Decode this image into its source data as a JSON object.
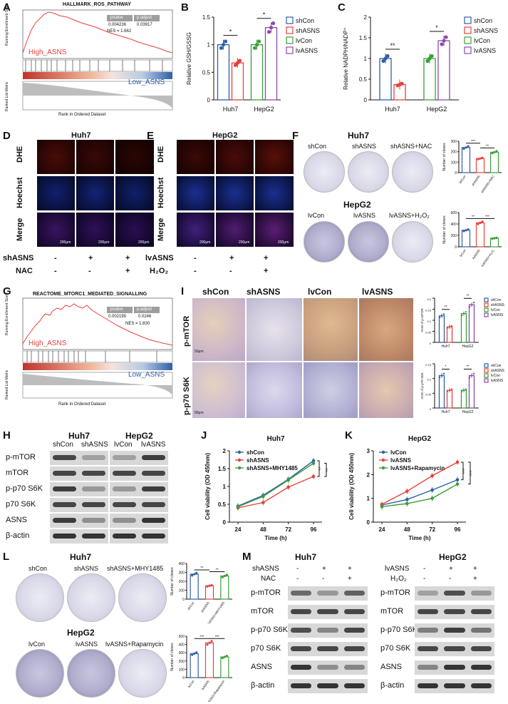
{
  "panels": {
    "A": {
      "letter": "A",
      "title": "HALLMARK_ROS_PATHWAY",
      "ylabel": "Running Enrichment Score",
      "ylabel2": "Ranked List Metric",
      "xlabel": "Rank in Ordered Dataset",
      "high": "High_ASNS",
      "low": "Low_ASNS",
      "pvalue_h": "pvalue",
      "padj_h": "p.adjust",
      "pvalue": "0.004236",
      "padj": "0.03917",
      "nes": "NES = 1.662"
    },
    "B": {
      "letter": "B",
      "ylabel": "Relative GSH/GSSG",
      "groups": [
        "Huh7",
        "HepG2"
      ],
      "sig": [
        "*",
        "*"
      ]
    },
    "C": {
      "letter": "C",
      "ylabel": "Relative NADPH/NADP⁺",
      "groups": [
        "Huh7",
        "HepG2"
      ],
      "sig": [
        "**",
        "*"
      ]
    },
    "D": {
      "letter": "D",
      "title": "Huh7",
      "rows": [
        "DHE",
        "Hoechst",
        "Merge"
      ],
      "scale": "200μm",
      "treat1": "shASNS",
      "treat2": "NAC",
      "signs1": [
        "-",
        "+",
        "+"
      ],
      "signs2": [
        "-",
        "-",
        "+"
      ]
    },
    "E": {
      "letter": "E",
      "title": "HepG2",
      "rows": [
        "DHE",
        "Hoechst",
        "Merge"
      ],
      "scale": "200μm",
      "treat1": "lvASNS",
      "treat2": "H₂O₂",
      "signs1": [
        "-",
        "+",
        "+"
      ],
      "signs2": [
        "-",
        "-",
        "+"
      ]
    },
    "F": {
      "letter": "F",
      "title1": "Huh7",
      "labels1": [
        "shCon",
        "shASNS",
        "shASNS+NAC"
      ],
      "title2": "HepG2",
      "labels2": [
        "lvCon",
        "lvASNS",
        "lvASNS+H₂O₂"
      ],
      "ylabel": "Number of clones",
      "sig1": [
        "***",
        "**"
      ],
      "sig2": [
        "**",
        "***"
      ]
    },
    "G": {
      "letter": "G",
      "title": "REACTOME_MTORC1_MEDIATED_SIGNALLING",
      "ylabel": "Running Enrichment Score",
      "ylabel2": "Ranked List Metric",
      "xlabel": "Rank in Ordered Dataset",
      "high": "High_ASNS",
      "low": "Low_ASNS",
      "pvalue_h": "pvalue",
      "padj_h": "p.adjust",
      "pvalue": "0.002195",
      "padj": "0.0246",
      "nes": "NES = 1.830"
    },
    "I": {
      "letter": "I",
      "cols": [
        "shCon",
        "shASNS",
        "lvCon",
        "lvASNS"
      ],
      "rows": [
        "p-mTOR",
        "p-p70 S6K"
      ],
      "scale": "50μm",
      "ylabel1": "AOD of p-mTOR",
      "ylabel2": "AOD of p-p70 S6K",
      "groups": [
        "Huh7",
        "HepG2"
      ]
    },
    "H": {
      "letter": "H",
      "title1": "Huh7",
      "title2": "HepG2",
      "lanes1": [
        "shCon",
        "shASNS"
      ],
      "lanes2": [
        "lvCon",
        "lvASNS"
      ],
      "rows": [
        "p-mTOR",
        "mTOR",
        "p-p70 S6K",
        "p70 S6K",
        "ASNS",
        "β-actin"
      ]
    },
    "J": {
      "letter": "J",
      "title": "Huh7",
      "xlabel": "Time (h)",
      "ylabel": "Cell viability (OD 450nm)",
      "sig": [
        "**",
        "**"
      ]
    },
    "K": {
      "letter": "K",
      "title": "HepG2",
      "xlabel": "Time (h)",
      "ylabel": "Cell viability (OD 450nm)",
      "sig": [
        "***",
        "***"
      ]
    },
    "L": {
      "letter": "L",
      "title1": "Huh7",
      "labels1": [
        "shCon",
        "shASNS",
        "shASNS+MHY1485"
      ],
      "title2": "HepG2",
      "labels2": [
        "lvCon",
        "lvASNS",
        "lvASNS+Rapamycin"
      ],
      "ylabel": "Number of clones",
      "sig1": [
        "**",
        "**"
      ],
      "sig2": [
        "***",
        "***"
      ]
    },
    "M": {
      "letter": "M",
      "title1": "Huh7",
      "title2": "HepG2",
      "treat1a": "shASNS",
      "treat1b": "NAC",
      "treat2a": "lvASNS",
      "treat2b": "H₂O₂",
      "signsA": [
        "-",
        "+",
        "+"
      ],
      "signsB": [
        "-",
        "-",
        "+"
      ],
      "rows": [
        "p-mTOR",
        "mTOR",
        "p-p70 S6K",
        "p70 S6K",
        "ASNS",
        "β-actin"
      ]
    }
  },
  "colors": {
    "blue": "#2f5fa8",
    "red": "#e8413a",
    "green": "#3a9e3a",
    "purple": "#8b4aa8"
  },
  "chart_data": [
    {
      "id": "B",
      "type": "bar",
      "categories": [
        "Huh7",
        "HepG2"
      ],
      "ylabel": "Relative GSH/GSSG",
      "ylim": [
        0,
        1.5
      ],
      "yticks": [
        0,
        0.5,
        1.0,
        1.5
      ],
      "series": [
        {
          "name": "shCon",
          "values": [
            1.0,
            null
          ]
        },
        {
          "name": "shASNS",
          "values": [
            0.67,
            null
          ]
        },
        {
          "name": "lvCon",
          "values": [
            null,
            1.0
          ]
        },
        {
          "name": "lvASNS",
          "values": [
            null,
            1.31
          ]
        }
      ]
    },
    {
      "id": "C",
      "type": "bar",
      "categories": [
        "Huh7",
        "HepG2"
      ],
      "ylabel": "Relative NADPH/NADP⁺",
      "ylim": [
        0,
        2.0
      ],
      "yticks": [
        0,
        0.5,
        1.0,
        1.5,
        2.0
      ],
      "series": [
        {
          "name": "shCon",
          "values": [
            1.0,
            null
          ]
        },
        {
          "name": "shASNS",
          "values": [
            0.37,
            null
          ]
        },
        {
          "name": "lvCon",
          "values": [
            null,
            1.0
          ]
        },
        {
          "name": "lvASNS",
          "values": [
            null,
            1.43
          ]
        }
      ]
    },
    {
      "id": "J",
      "type": "line",
      "title": "Huh7",
      "x": [
        24,
        48,
        72,
        96
      ],
      "xlabel": "Time (h)",
      "ylabel": "Cell viability (OD 450nm)",
      "ylim": [
        0,
        2.0
      ],
      "yticks": [
        0,
        0.5,
        1.0,
        1.5,
        2.0
      ],
      "series": [
        {
          "name": "shCon",
          "values": [
            0.45,
            0.75,
            1.2,
            1.72
          ]
        },
        {
          "name": "shASNS",
          "values": [
            0.4,
            0.55,
            0.98,
            1.28
          ]
        },
        {
          "name": "shASNS+MHY1485",
          "values": [
            0.43,
            0.72,
            1.18,
            1.65
          ]
        }
      ]
    },
    {
      "id": "K",
      "type": "line",
      "title": "HepG2",
      "x": [
        24,
        48,
        72,
        96
      ],
      "xlabel": "Time (h)",
      "ylabel": "Cell viability (OD 450nm)",
      "ylim": [
        0,
        3.0
      ],
      "yticks": [
        0,
        1,
        2,
        3
      ],
      "series": [
        {
          "name": "lvCon",
          "values": [
            0.72,
            0.95,
            1.35,
            1.78
          ]
        },
        {
          "name": "lvASNS",
          "values": [
            0.75,
            1.3,
            1.95,
            2.52
          ]
        },
        {
          "name": "lvASNS+Rapamycin",
          "values": [
            0.65,
            0.78,
            1.0,
            1.6
          ]
        }
      ]
    },
    {
      "id": "F1",
      "type": "bar",
      "categories": [
        "shCon",
        "shASNS",
        "shASNS+NAC"
      ],
      "ylabel": "Number of clones",
      "ylim": [
        0,
        300
      ],
      "yticks": [
        0,
        100,
        200,
        300
      ],
      "values": [
        240,
        135,
        195
      ]
    },
    {
      "id": "F2",
      "type": "bar",
      "categories": [
        "lvCon",
        "lvASNS",
        "lvASNS+H₂O₂"
      ],
      "ylabel": "Number of clones",
      "ylim": [
        0,
        600
      ],
      "yticks": [
        0,
        200,
        400,
        600
      ],
      "values": [
        290,
        420,
        150
      ]
    },
    {
      "id": "L1",
      "type": "bar",
      "categories": [
        "shCon",
        "shASNS",
        "shASNS+MHY1485"
      ],
      "ylabel": "Number of clones",
      "ylim": [
        0,
        400
      ],
      "yticks": [
        0,
        100,
        200,
        300,
        400
      ],
      "values": [
        280,
        150,
        260
      ]
    },
    {
      "id": "L2",
      "type": "bar",
      "categories": [
        "lvCon",
        "lvASNS",
        "lvASNS+Rapamycin"
      ],
      "ylabel": "Number of clones",
      "ylim": [
        0,
        500
      ],
      "yticks": [
        0,
        100,
        200,
        300,
        400,
        500
      ],
      "values": [
        290,
        420,
        250
      ]
    },
    {
      "id": "I1",
      "type": "bar",
      "categories": [
        "Huh7",
        "HepG2"
      ],
      "ylabel": "AOD of p-mTOR",
      "ylim": [
        0,
        0.2
      ],
      "yticks": [
        0,
        0.05,
        0.1,
        0.15,
        0.2
      ],
      "series": [
        {
          "name": "shCon",
          "values": [
            0.12,
            null
          ]
        },
        {
          "name": "shASNS",
          "values": [
            0.07,
            null
          ]
        },
        {
          "name": "lvCon",
          "values": [
            null,
            0.13
          ]
        },
        {
          "name": "lvASNS",
          "values": [
            null,
            0.17
          ]
        }
      ]
    },
    {
      "id": "I2",
      "type": "bar",
      "categories": [
        "Huh7",
        "HepG2"
      ],
      "ylabel": "AOD of p-p70 S6K",
      "ylim": [
        0,
        0.15
      ],
      "yticks": [
        0,
        0.05,
        0.1,
        0.15
      ],
      "series": [
        {
          "name": "shCon",
          "values": [
            0.11,
            null
          ]
        },
        {
          "name": "shASNS",
          "values": [
            0.06,
            null
          ]
        },
        {
          "name": "lvCon",
          "values": [
            null,
            0.06
          ]
        },
        {
          "name": "lvASNS",
          "values": [
            null,
            0.11
          ]
        }
      ]
    }
  ]
}
